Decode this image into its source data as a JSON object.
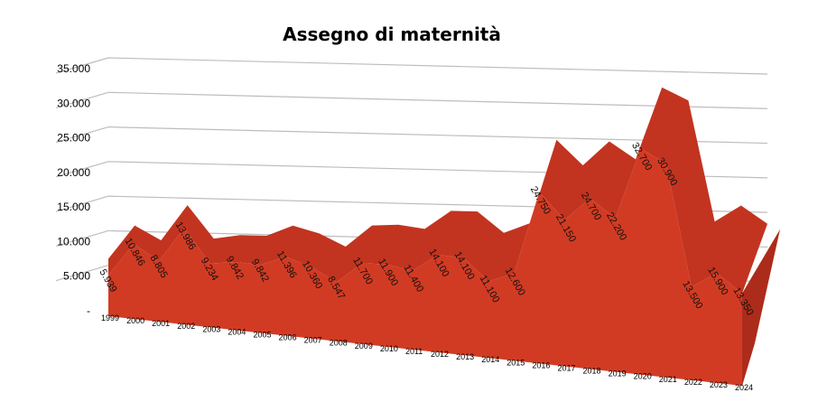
{
  "chart_data": {
    "type": "area",
    "title": "Assegno di maternità",
    "xlabel": "",
    "ylabel": "",
    "ylim": [
      0,
      35000
    ],
    "grid": true,
    "yticks": [
      "-",
      "5.000",
      "10.000",
      "15.000",
      "20.000",
      "25.000",
      "30.000",
      "35.000"
    ],
    "categories": [
      "1999",
      "2000",
      "2001",
      "2002",
      "2003",
      "2004",
      "2005",
      "2006",
      "2007",
      "2008",
      "2009",
      "2010",
      "2011",
      "2012",
      "2013",
      "2014",
      "2015",
      "2016",
      "2017",
      "2018",
      "2019",
      "2020",
      "2021",
      "2022",
      "2023",
      "2024"
    ],
    "values": [
      5939,
      10846,
      8805,
      13986,
      9234,
      9842,
      9842,
      11396,
      10360,
      8547,
      11700,
      11900,
      11400,
      14100,
      14100,
      11100,
      12600,
      24750,
      21150,
      24700,
      22200,
      32700,
      30900,
      13500,
      15900,
      13350
    ],
    "labels": [
      "5.939",
      "10.846",
      "8.805",
      "13.986",
      "9.234",
      "9.842",
      "9.842",
      "11.396",
      "10.360",
      "8.547",
      "11.700",
      "11.900",
      "11.400",
      "14.100",
      "14.100",
      "11.100",
      "12.600",
      "24.750",
      "21.150",
      "24.700",
      "22.200",
      "32.700",
      "30.900",
      "13.500",
      "15.900",
      "13.350"
    ],
    "colors": {
      "front": "#d23b23",
      "top": "#c23420",
      "side": "#ad2b1a",
      "grid": "#bdbdbd"
    }
  }
}
